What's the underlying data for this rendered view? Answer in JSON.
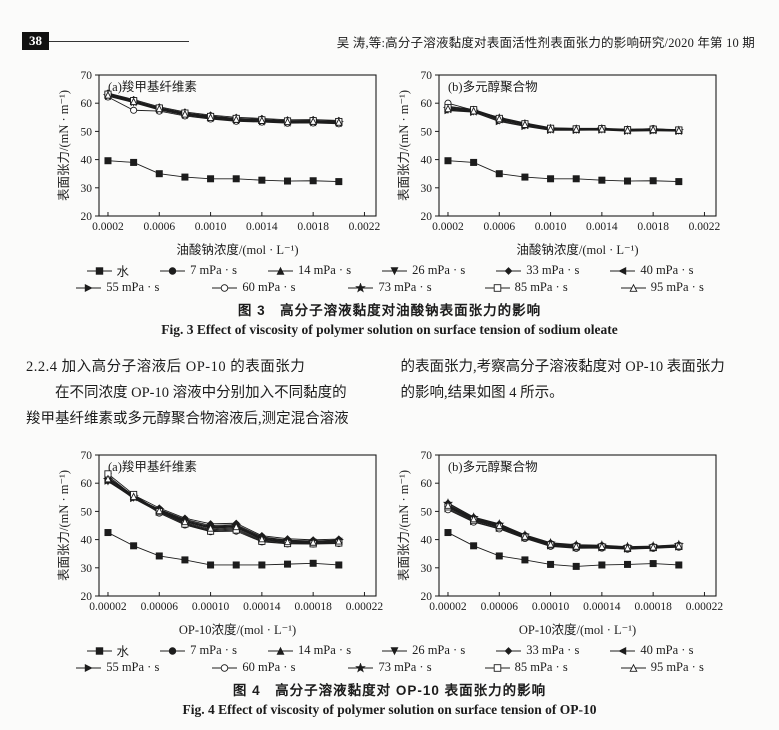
{
  "header": {
    "page_number": "38",
    "running_title": "吴  涛,等:高分子溶液黏度对表面活性剂表面张力的影响研究/2020 年第 10 期"
  },
  "section_text": {
    "heading": "2.2.4  加入高分子溶液后 OP-10 的表面张力",
    "left_lines": [
      "在不同浓度 OP-10 溶液中分别加入不同黏度的",
      "羧甲基纤维素或多元醇聚合物溶液后,测定混合溶液"
    ],
    "right_lines": [
      "的表面张力,考察高分子溶液黏度对 OP-10 表面张力",
      "的影响,结果如图 4 所示。"
    ]
  },
  "figures": [
    {
      "id": "fig3",
      "caption_zh": "图 3　高分子溶液黏度对油酸钠表面张力的影响",
      "caption_en": "Fig. 3   Effect of viscosity of polymer solution on surface tension of sodium oleate",
      "legend_rows": [
        [
          {
            "marker": "square",
            "label": "水"
          },
          {
            "marker": "circle",
            "label": "7 mPa · s"
          },
          {
            "marker": "triangle-up",
            "label": "14 mPa · s"
          },
          {
            "marker": "triangle-down",
            "label": "26 mPa · s"
          },
          {
            "marker": "diamond",
            "label": "33 mPa · s"
          },
          {
            "marker": "triangle-left",
            "label": "40 mPa · s"
          }
        ],
        [
          {
            "marker": "triangle-right",
            "label": "55 mPa · s"
          },
          {
            "marker": "circle-open",
            "label": "60 mPa · s"
          },
          {
            "marker": "star",
            "label": "73 mPa · s"
          },
          {
            "marker": "square-open",
            "label": "85 mPa · s"
          },
          {
            "marker": "triangle-up-open",
            "label": "95 mPa · s"
          }
        ]
      ]
    },
    {
      "id": "fig4",
      "caption_zh": "图 4　高分子溶液黏度对 OP-10 表面张力的影响",
      "caption_en": "Fig. 4   Effect of viscosity of polymer solution on surface tension of OP-10",
      "legend_rows": [
        [
          {
            "marker": "square",
            "label": "水"
          },
          {
            "marker": "circle",
            "label": "7 mPa · s"
          },
          {
            "marker": "triangle-up",
            "label": "14 mPa · s"
          },
          {
            "marker": "triangle-down",
            "label": "26 mPa · s"
          },
          {
            "marker": "diamond",
            "label": "33 mPa · s"
          },
          {
            "marker": "triangle-left",
            "label": "40 mPa · s"
          }
        ],
        [
          {
            "marker": "triangle-right",
            "label": "55 mPa · s"
          },
          {
            "marker": "circle-open",
            "label": "60 mPa · s"
          },
          {
            "marker": "star",
            "label": "73 mPa · s"
          },
          {
            "marker": "square-open",
            "label": "85 mPa · s"
          },
          {
            "marker": "triangle-up-open",
            "label": "95 mPa · s"
          }
        ]
      ]
    }
  ],
  "chart_data": [
    {
      "type": "line",
      "title": "(a)羧甲基纤维素",
      "xlabel": "油酸钠浓度/(mol · L⁻¹)",
      "ylabel": "表面张力/(mN · m⁻¹)",
      "xlim": [
        0.00013,
        0.00229
      ],
      "ylim": [
        20,
        70
      ],
      "xticks": [
        0.0002,
        0.0006,
        0.001,
        0.0014,
        0.0018,
        0.0022
      ],
      "xtick_labels": [
        "0.0002",
        "0.0006",
        "0.0010",
        "0.0014",
        "0.0018",
        "0.0022"
      ],
      "yticks": [
        20,
        30,
        40,
        50,
        60,
        70
      ],
      "x": [
        0.0002,
        0.0004,
        0.0006,
        0.0008,
        0.001,
        0.0012,
        0.0014,
        0.0016,
        0.0018,
        0.002
      ],
      "series": [
        {
          "name": "水",
          "marker": "square",
          "values": [
            39.6,
            39.0,
            35.0,
            33.8,
            33.2,
            33.2,
            32.7,
            32.4,
            32.5,
            32.2
          ]
        },
        {
          "name": "7 mPa·s",
          "marker": "circle",
          "values": [
            63.4,
            61.0,
            58.4,
            56.6,
            55.5,
            54.6,
            54.3,
            53.8,
            53.9,
            53.6
          ]
        },
        {
          "name": "14 mPa·s",
          "marker": "triangle-up",
          "values": [
            63.1,
            60.9,
            58.1,
            56.4,
            55.2,
            54.5,
            54.0,
            53.7,
            53.8,
            53.5
          ]
        },
        {
          "name": "26 mPa·s",
          "marker": "triangle-down",
          "values": [
            62.5,
            60.2,
            57.6,
            55.8,
            54.6,
            53.8,
            53.5,
            53.1,
            53.2,
            52.9
          ]
        },
        {
          "name": "33 mPa·s",
          "marker": "diamond",
          "values": [
            63.6,
            61.3,
            58.7,
            56.9,
            55.8,
            55.0,
            54.6,
            54.1,
            54.2,
            53.9
          ]
        },
        {
          "name": "40 mPa·s",
          "marker": "triangle-left",
          "values": [
            62.8,
            60.6,
            58.0,
            56.1,
            55.0,
            54.2,
            53.8,
            53.4,
            53.5,
            53.2
          ]
        },
        {
          "name": "55 mPa·s",
          "marker": "triangle-right",
          "values": [
            63.0,
            60.7,
            58.2,
            56.3,
            55.1,
            54.4,
            54.0,
            53.6,
            53.7,
            53.4
          ]
        },
        {
          "name": "60 mPa·s",
          "marker": "circle-open",
          "values": [
            62.2,
            57.5,
            57.2,
            55.5,
            54.4,
            53.6,
            53.3,
            52.9,
            53.0,
            52.7
          ]
        },
        {
          "name": "73 mPa·s",
          "marker": "star",
          "values": [
            62.6,
            60.4,
            57.8,
            55.9,
            54.8,
            54.0,
            53.6,
            53.2,
            53.3,
            53.0
          ]
        },
        {
          "name": "85 mPa·s",
          "marker": "square-open",
          "values": [
            63.2,
            60.9,
            58.3,
            56.5,
            55.3,
            54.6,
            54.1,
            53.7,
            53.8,
            53.5
          ]
        },
        {
          "name": "95 mPa·s",
          "marker": "triangle-up-open",
          "values": [
            62.9,
            60.6,
            58.1,
            56.2,
            55.0,
            54.3,
            53.9,
            53.5,
            53.6,
            53.3
          ]
        }
      ]
    },
    {
      "type": "line",
      "title": "(b)多元醇聚合物",
      "xlabel": "油酸钠浓度/(mol · L⁻¹)",
      "ylabel": "表面张力/(mN · m⁻¹)",
      "xlim": [
        0.00013,
        0.00229
      ],
      "ylim": [
        20,
        70
      ],
      "xticks": [
        0.0002,
        0.0006,
        0.001,
        0.0014,
        0.0018,
        0.0022
      ],
      "xtick_labels": [
        "0.0002",
        "0.0006",
        "0.0010",
        "0.0014",
        "0.0018",
        "0.0022"
      ],
      "yticks": [
        20,
        30,
        40,
        50,
        60,
        70
      ],
      "x": [
        0.0002,
        0.0004,
        0.0006,
        0.0008,
        0.001,
        0.0012,
        0.0014,
        0.0016,
        0.0018,
        0.002
      ],
      "series": [
        {
          "name": "水",
          "marker": "square",
          "values": [
            39.6,
            39.0,
            35.0,
            33.8,
            33.2,
            33.2,
            32.7,
            32.4,
            32.5,
            32.2
          ]
        },
        {
          "name": "7 mPa·s",
          "marker": "circle",
          "values": [
            58.6,
            57.6,
            54.3,
            52.4,
            51.0,
            50.9,
            51.0,
            50.6,
            50.8,
            50.5
          ]
        },
        {
          "name": "14 mPa·s",
          "marker": "triangle-up",
          "values": [
            58.2,
            57.4,
            55.0,
            53.0,
            51.3,
            51.0,
            50.9,
            50.5,
            50.6,
            50.4
          ]
        },
        {
          "name": "26 mPa·s",
          "marker": "triangle-down",
          "values": [
            57.6,
            57.0,
            53.8,
            52.0,
            50.6,
            50.5,
            50.6,
            50.2,
            50.4,
            50.2
          ]
        },
        {
          "name": "33 mPa·s",
          "marker": "diamond",
          "values": [
            58.9,
            57.8,
            54.8,
            52.8,
            51.2,
            51.1,
            51.1,
            50.8,
            50.9,
            50.6
          ]
        },
        {
          "name": "40 mPa·s",
          "marker": "triangle-left",
          "values": [
            57.9,
            57.2,
            54.2,
            52.2,
            50.8,
            50.7,
            50.7,
            50.4,
            50.5,
            50.3
          ]
        },
        {
          "name": "55 mPa·s",
          "marker": "triangle-right",
          "values": [
            57.4,
            56.8,
            53.5,
            51.8,
            50.4,
            50.4,
            50.5,
            50.1,
            50.2,
            50.1
          ]
        },
        {
          "name": "60 mPa·s",
          "marker": "circle-open",
          "values": [
            60.0,
            57.5,
            54.0,
            52.6,
            50.9,
            50.8,
            51.0,
            50.7,
            51.0,
            50.4
          ]
        },
        {
          "name": "73 mPa·s",
          "marker": "star",
          "values": [
            58.0,
            57.1,
            54.4,
            52.3,
            50.7,
            50.6,
            50.8,
            50.3,
            50.5,
            50.2
          ]
        },
        {
          "name": "85 mPa·s",
          "marker": "square-open",
          "values": [
            58.4,
            57.7,
            54.6,
            52.7,
            51.1,
            50.9,
            51.0,
            50.6,
            50.8,
            50.5
          ]
        },
        {
          "name": "95 mPa·s",
          "marker": "triangle-up-open",
          "values": [
            58.1,
            57.3,
            54.5,
            52.5,
            50.9,
            50.8,
            50.9,
            50.5,
            50.7,
            50.4
          ]
        }
      ]
    },
    {
      "type": "line",
      "title": "(a)羧甲基纤维素",
      "xlabel": "OP-10浓度/(mol · L⁻¹)",
      "ylabel": "表面张力/(mN · m⁻¹)",
      "xlim": [
        1.3e-05,
        0.000229
      ],
      "ylim": [
        20,
        70
      ],
      "xticks": [
        2e-05,
        6e-05,
        0.0001,
        0.00014,
        0.00018,
        0.00022
      ],
      "xtick_labels": [
        "0.00002",
        "0.00006",
        "0.00010",
        "0.00014",
        "0.00018",
        "0.00022"
      ],
      "yticks": [
        20,
        30,
        40,
        50,
        60,
        70
      ],
      "x": [
        2e-05,
        4e-05,
        6e-05,
        8e-05,
        0.0001,
        0.00012,
        0.00014,
        0.00016,
        0.00018,
        0.0002
      ],
      "series": [
        {
          "name": "水",
          "marker": "square",
          "values": [
            42.5,
            37.8,
            34.2,
            32.8,
            31.0,
            31.0,
            31.0,
            31.3,
            31.6,
            31.0
          ]
        },
        {
          "name": "7 mPa·s",
          "marker": "circle",
          "values": [
            61.0,
            55.0,
            50.8,
            47.2,
            45.0,
            45.3,
            41.0,
            39.8,
            39.5,
            39.8
          ]
        },
        {
          "name": "14 mPa·s",
          "marker": "triangle-up",
          "values": [
            62.0,
            55.6,
            50.4,
            46.6,
            44.3,
            44.8,
            40.4,
            39.4,
            39.2,
            40.0
          ]
        },
        {
          "name": "26 mPa·s",
          "marker": "triangle-down",
          "values": [
            60.6,
            54.8,
            50.0,
            46.0,
            43.6,
            44.2,
            40.0,
            39.0,
            38.9,
            39.2
          ]
        },
        {
          "name": "33 mPa·s",
          "marker": "diamond",
          "values": [
            61.4,
            55.8,
            51.2,
            47.6,
            45.6,
            45.8,
            41.4,
            40.3,
            39.9,
            40.2
          ]
        },
        {
          "name": "40 mPa·s",
          "marker": "triangle-left",
          "values": [
            61.8,
            55.2,
            50.2,
            46.3,
            44.0,
            44.5,
            40.2,
            39.2,
            39.0,
            39.4
          ]
        },
        {
          "name": "55 mPa·s",
          "marker": "triangle-right",
          "values": [
            60.8,
            54.6,
            49.7,
            45.7,
            43.3,
            43.8,
            39.7,
            38.8,
            38.7,
            39.0
          ]
        },
        {
          "name": "60 mPa·s",
          "marker": "circle-open",
          "values": [
            62.6,
            55.4,
            49.4,
            45.2,
            42.8,
            43.0,
            39.2,
            38.5,
            38.4,
            38.6
          ]
        },
        {
          "name": "73 mPa·s",
          "marker": "star",
          "values": [
            61.2,
            55.1,
            50.6,
            46.9,
            44.6,
            45.0,
            40.7,
            39.6,
            39.3,
            39.6
          ]
        },
        {
          "name": "85 mPa·s",
          "marker": "square-open",
          "values": [
            63.3,
            56.0,
            49.9,
            45.5,
            43.0,
            43.4,
            39.4,
            38.6,
            38.5,
            38.8
          ]
        },
        {
          "name": "95 mPa·s",
          "marker": "triangle-up-open",
          "values": [
            61.6,
            55.3,
            50.3,
            46.4,
            44.1,
            44.6,
            40.3,
            39.3,
            39.1,
            39.5
          ]
        }
      ]
    },
    {
      "type": "line",
      "title": "(b)多元醇聚合物",
      "xlabel": "OP-10浓度/(mol · L⁻¹)",
      "ylabel": "表面张力/(mN · m⁻¹)",
      "xlim": [
        1.3e-05,
        0.000229
      ],
      "ylim": [
        20,
        70
      ],
      "xticks": [
        2e-05,
        6e-05,
        0.0001,
        0.00014,
        0.00018,
        0.00022
      ],
      "xtick_labels": [
        "0.00002",
        "0.00006",
        "0.00010",
        "0.00014",
        "0.00018",
        "0.00022"
      ],
      "yticks": [
        20,
        30,
        40,
        50,
        60,
        70
      ],
      "x": [
        2e-05,
        4e-05,
        6e-05,
        8e-05,
        0.0001,
        0.00012,
        0.00014,
        0.00016,
        0.00018,
        0.0002
      ],
      "series": [
        {
          "name": "水",
          "marker": "square",
          "values": [
            42.5,
            37.8,
            34.2,
            32.8,
            31.2,
            30.5,
            31.0,
            31.2,
            31.5,
            31.0
          ]
        },
        {
          "name": "7 mPa·s",
          "marker": "circle",
          "values": [
            52.4,
            47.6,
            45.2,
            41.4,
            38.6,
            37.9,
            37.8,
            37.2,
            37.5,
            38.0
          ]
        },
        {
          "name": "14 mPa·s",
          "marker": "triangle-up",
          "values": [
            52.0,
            47.2,
            44.8,
            41.1,
            38.3,
            37.6,
            37.5,
            37.0,
            37.3,
            37.7
          ]
        },
        {
          "name": "26 mPa·s",
          "marker": "triangle-down",
          "values": [
            51.4,
            46.7,
            44.3,
            40.8,
            38.0,
            37.3,
            37.3,
            36.8,
            37.1,
            37.5
          ]
        },
        {
          "name": "33 mPa·s",
          "marker": "diamond",
          "values": [
            53.0,
            48.0,
            45.6,
            41.7,
            38.9,
            38.2,
            38.0,
            37.5,
            37.7,
            38.2
          ]
        },
        {
          "name": "40 mPa·s",
          "marker": "triangle-left",
          "values": [
            51.8,
            47.0,
            44.6,
            41.0,
            38.2,
            37.5,
            37.4,
            36.9,
            37.2,
            37.6
          ]
        },
        {
          "name": "55 mPa·s",
          "marker": "triangle-right",
          "values": [
            51.0,
            46.4,
            44.0,
            40.6,
            37.8,
            37.1,
            37.1,
            36.7,
            37.0,
            37.4
          ]
        },
        {
          "name": "60 mPa·s",
          "marker": "circle-open",
          "values": [
            50.6,
            46.2,
            43.8,
            40.4,
            37.6,
            36.9,
            37.0,
            36.6,
            36.9,
            37.3
          ]
        },
        {
          "name": "73 mPa·s",
          "marker": "star",
          "values": [
            52.8,
            47.8,
            45.4,
            41.5,
            38.7,
            38.0,
            37.9,
            37.4,
            37.6,
            38.1
          ]
        },
        {
          "name": "85 mPa·s",
          "marker": "square-open",
          "values": [
            51.6,
            46.9,
            44.5,
            40.9,
            38.1,
            37.4,
            37.4,
            36.9,
            37.2,
            37.6
          ]
        },
        {
          "name": "95 mPa·s",
          "marker": "triangle-up-open",
          "values": [
            52.2,
            47.4,
            45.0,
            41.2,
            38.4,
            37.7,
            37.6,
            37.1,
            37.4,
            37.8
          ]
        }
      ]
    }
  ],
  "colors": {
    "ink": "#1c1c1c",
    "paper": "#fbfbfa"
  }
}
